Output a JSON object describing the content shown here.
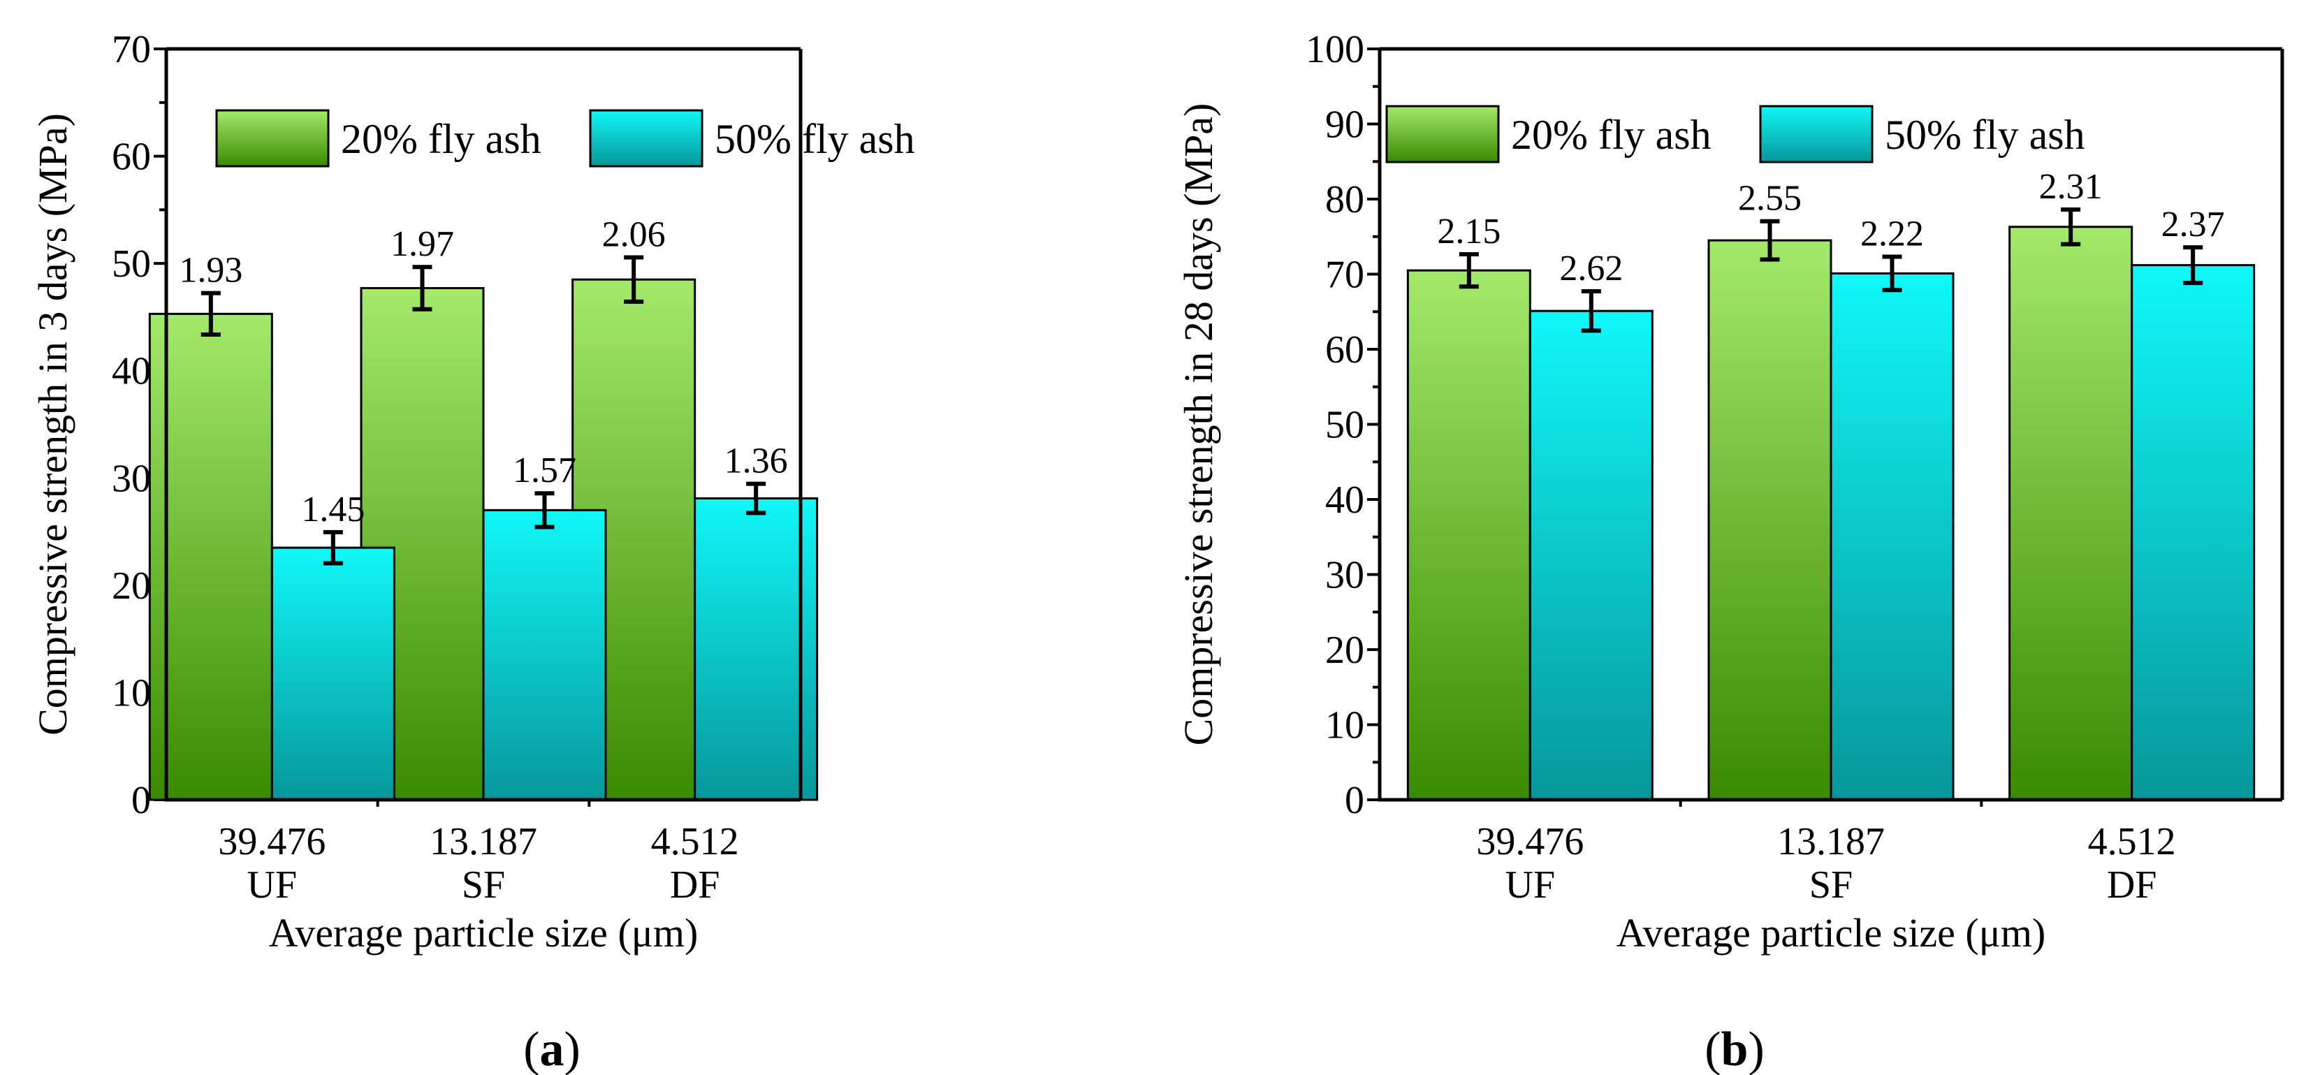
{
  "colors": {
    "series1_top": "#a3ea6a",
    "series1_bottom": "#3a8a00",
    "series2_top": "#11f7f7",
    "series2_bottom": "#06979b"
  },
  "panel_labels": [
    {
      "open": "(",
      "letter": "a",
      "close": ")"
    },
    {
      "open": "(",
      "letter": "b",
      "close": ")"
    }
  ],
  "chart_data": [
    {
      "type": "bar",
      "categories": [
        "39.476",
        "13.187",
        "4.512"
      ],
      "category_sublabels": [
        "UF",
        "SF",
        "DF"
      ],
      "xlabel": "Average particle size (μm)",
      "ylabel": "Compressive strength in 3 days (MPa)",
      "ylim": [
        0,
        70
      ],
      "yticks": [
        "0",
        "10",
        "20",
        "30",
        "40",
        "50",
        "60",
        "70"
      ],
      "legend_position": "top-left",
      "series": [
        {
          "name": "20% fly ash",
          "values": [
            45.3,
            47.7,
            48.5
          ],
          "errors": [
            1.93,
            1.97,
            2.06
          ],
          "labels": [
            "1.93",
            "1.97",
            "2.06"
          ]
        },
        {
          "name": "50% fly ash",
          "values": [
            23.5,
            27.0,
            28.1
          ],
          "errors": [
            1.45,
            1.57,
            1.36
          ],
          "labels": [
            "1.45",
            "1.57",
            "1.36"
          ]
        }
      ]
    },
    {
      "type": "bar",
      "categories": [
        "39.476",
        "13.187",
        "4.512"
      ],
      "category_sublabels": [
        "UF",
        "SF",
        "DF"
      ],
      "xlabel": "Average particle size (μm)",
      "ylabel": "Compressive strength in 28 days (MPa)",
      "ylim": [
        0,
        100
      ],
      "yticks": [
        "0",
        "10",
        "20",
        "30",
        "40",
        "50",
        "60",
        "70",
        "80",
        "90",
        "100"
      ],
      "legend_position": "top-left",
      "series": [
        {
          "name": "20% fly ash",
          "values": [
            70.5,
            74.5,
            76.3
          ],
          "errors": [
            2.15,
            2.55,
            2.31
          ],
          "labels": [
            "2.15",
            "2.55",
            "2.31"
          ]
        },
        {
          "name": "50% fly ash",
          "values": [
            65.1,
            70.1,
            71.2
          ],
          "errors": [
            2.62,
            2.22,
            2.37
          ],
          "labels": [
            "2.62",
            "2.22",
            "2.37"
          ]
        }
      ]
    }
  ]
}
